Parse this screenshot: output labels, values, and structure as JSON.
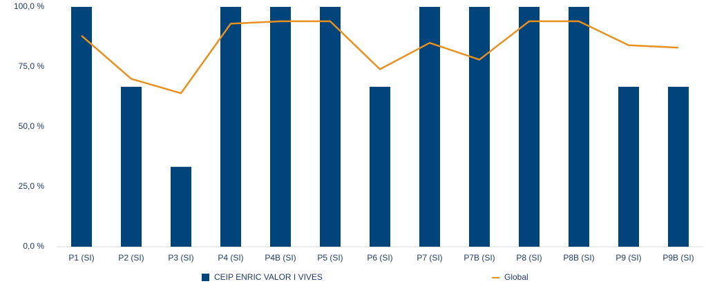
{
  "chart_data": {
    "type": "bar_line",
    "categories": [
      "P1 (SI)",
      "P2 (SI)",
      "P3 (SI)",
      "P4 (SI)",
      "P4B (SI)",
      "P5 (SI)",
      "P6 (SI)",
      "P7 (SI)",
      "P7B (SI)",
      "P8 (SI)",
      "P8B (SI)",
      "P9 (SI)",
      "P9B (SI)"
    ],
    "series": [
      {
        "name": "CEIP ENRIC VALOR I VIVES",
        "type": "bar",
        "color": "#00447c",
        "values": [
          100,
          66.7,
          33.3,
          100,
          100,
          100,
          66.7,
          100,
          100,
          100,
          100,
          66.7,
          66.7
        ]
      },
      {
        "name": "Global",
        "type": "line",
        "color": "#e8901e",
        "values": [
          88,
          70,
          64,
          93,
          94,
          94,
          74,
          85,
          78,
          94,
          94,
          84,
          83
        ]
      }
    ],
    "ylim": [
      0,
      100
    ],
    "yticks": [
      {
        "value": 0,
        "label": "0,0 %"
      },
      {
        "value": 25,
        "label": "25,0 %"
      },
      {
        "value": 50,
        "label": "50,0 %"
      },
      {
        "value": 75,
        "label": "75,0 %"
      },
      {
        "value": 100,
        "label": "100,0 %"
      }
    ],
    "grid": false,
    "legend": "bottom"
  }
}
